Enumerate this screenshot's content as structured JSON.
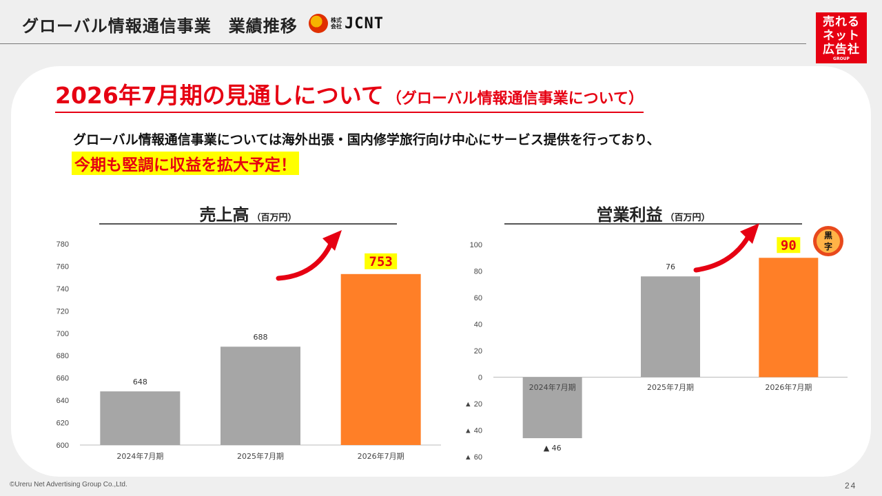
{
  "header": {
    "title": "グローバル情報通信事業　業績推移",
    "logo_small": "株式会社",
    "logo_text": "JCNT"
  },
  "brand": {
    "line1": "売れる",
    "line2": "ネット",
    "line3": "広告社",
    "sub": "GROUP",
    "color": "#e60012"
  },
  "headline": {
    "main": "2026年7月期の見通しについて",
    "sub": "（グローバル情報通信事業について）"
  },
  "description": "グローバル情報通信事業については海外出張・国内修学旅行向け中心にサービス提供を行っており、",
  "highlight": "今期も堅調に収益を拡大予定！",
  "colors": {
    "gray_bar": "#a6a6a6",
    "orange_bar": "#ff7f27",
    "accent_red": "#e60012",
    "label_highlight": "#ffff00"
  },
  "chart_data": [
    {
      "type": "bar",
      "title": "売上高",
      "unit": "（百万円）",
      "categories": [
        "2024年7月期",
        "2025年7月期",
        "2026年7月期"
      ],
      "values": [
        648,
        688,
        753
      ],
      "value_labels": [
        "648",
        "688",
        "753"
      ],
      "ylim": [
        600,
        780
      ],
      "yticks": [
        600,
        620,
        640,
        660,
        680,
        700,
        720,
        740,
        760,
        780
      ],
      "highlight_index": 2
    },
    {
      "type": "bar",
      "title": "営業利益",
      "unit": "（百万円）",
      "categories": [
        "2024年7月期",
        "2025年7月期",
        "2026年7月期"
      ],
      "values": [
        -46,
        76,
        90
      ],
      "value_labels": [
        "▲ 46",
        "76",
        "90"
      ],
      "ylim": [
        -60,
        100
      ],
      "yticks": [
        -60,
        -40,
        -20,
        0,
        20,
        40,
        60,
        80,
        100
      ],
      "ytick_labels": [
        "▲ 60",
        "▲ 40",
        "▲ 20",
        "0",
        "20",
        "40",
        "60",
        "80",
        "100"
      ],
      "highlight_index": 2,
      "badge": "黒字"
    }
  ],
  "footer": {
    "copyright": "©Ureru Net Advertising Group Co.,Ltd.",
    "page": "24"
  }
}
